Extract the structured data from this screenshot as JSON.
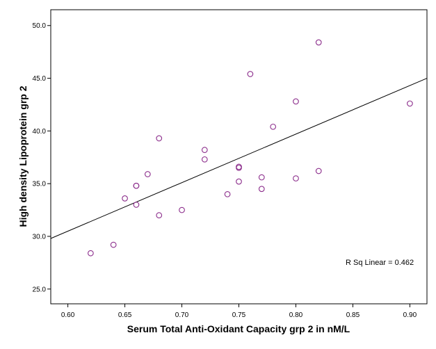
{
  "chart_data": {
    "type": "scatter",
    "title": "",
    "xlabel": "Serum Total Anti-Oxidant Capacity grp 2 in nM/L",
    "ylabel": "High density Lipoprotein grp 2",
    "xlim": [
      0.585,
      0.915
    ],
    "ylim": [
      23.6,
      51.5
    ],
    "x_ticks": [
      0.6,
      0.65,
      0.7,
      0.75,
      0.8,
      0.85,
      0.9
    ],
    "x_tick_labels": [
      "0.60",
      "0.65",
      "0.70",
      "0.75",
      "0.80",
      "0.85",
      "0.90"
    ],
    "y_ticks": [
      25,
      30,
      35,
      40,
      45,
      50
    ],
    "y_tick_labels": [
      "25.0",
      "30.0",
      "35.0",
      "40.0",
      "45.0",
      "50.0"
    ],
    "points": [
      {
        "x": 0.62,
        "y": 28.4
      },
      {
        "x": 0.64,
        "y": 29.2
      },
      {
        "x": 0.65,
        "y": 33.6
      },
      {
        "x": 0.66,
        "y": 34.8
      },
      {
        "x": 0.66,
        "y": 34.8
      },
      {
        "x": 0.66,
        "y": 33.0
      },
      {
        "x": 0.67,
        "y": 35.9
      },
      {
        "x": 0.68,
        "y": 39.3
      },
      {
        "x": 0.68,
        "y": 32.0
      },
      {
        "x": 0.7,
        "y": 32.5
      },
      {
        "x": 0.72,
        "y": 38.2
      },
      {
        "x": 0.72,
        "y": 37.3
      },
      {
        "x": 0.74,
        "y": 34.0
      },
      {
        "x": 0.75,
        "y": 36.6
      },
      {
        "x": 0.75,
        "y": 36.5
      },
      {
        "x": 0.75,
        "y": 35.2
      },
      {
        "x": 0.76,
        "y": 45.4
      },
      {
        "x": 0.77,
        "y": 35.6
      },
      {
        "x": 0.77,
        "y": 34.5
      },
      {
        "x": 0.78,
        "y": 40.4
      },
      {
        "x": 0.8,
        "y": 42.8
      },
      {
        "x": 0.8,
        "y": 35.5
      },
      {
        "x": 0.82,
        "y": 48.4
      },
      {
        "x": 0.82,
        "y": 36.2
      },
      {
        "x": 0.9,
        "y": 42.6
      }
    ],
    "fit_line": {
      "x": [
        0.585,
        0.915
      ],
      "y": [
        29.8,
        45.0
      ]
    },
    "annotation": "R Sq Linear = 0.462",
    "marker_color": "#8b2c8b",
    "line_color": "#000000",
    "grid": false
  }
}
